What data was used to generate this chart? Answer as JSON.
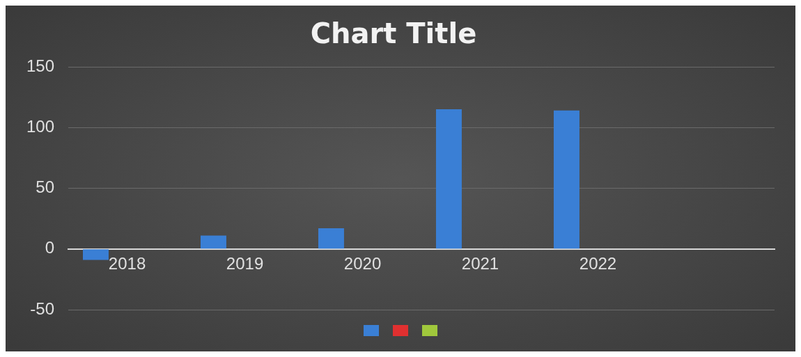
{
  "chart_data": {
    "type": "bar",
    "title": "Chart Title",
    "categories": [
      "2018",
      "2019",
      "2020",
      "2021",
      "2022",
      null
    ],
    "series": [
      {
        "color": "#3a7fd5",
        "values": [
          -9,
          11,
          17,
          115,
          114,
          null
        ]
      },
      {
        "color": "#e03030",
        "values": [
          null,
          null,
          null,
          null,
          null,
          null
        ]
      },
      {
        "color": "#a0c83c",
        "values": [
          null,
          null,
          null,
          null,
          null,
          null
        ]
      }
    ],
    "ylim": [
      -50,
      150
    ],
    "yticks": [
      -50,
      0,
      50,
      100,
      150
    ],
    "grid": "y"
  }
}
